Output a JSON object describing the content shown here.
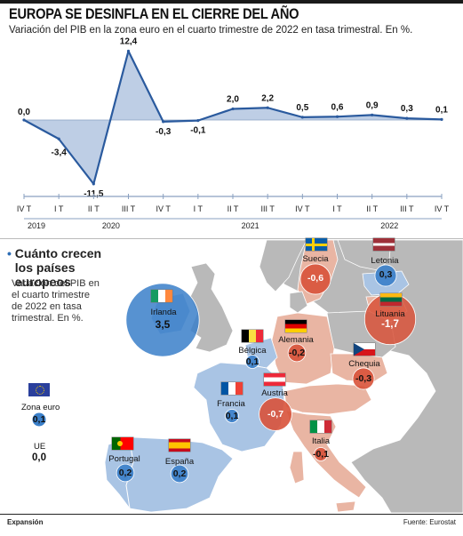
{
  "header": {
    "title": "EUROPA SE DESINFLA EN EL CIERRE DEL AÑO",
    "subtitle": "Variación del PIB en la zona euro en el cuarto trimestre de 2022 en tasa trimestral. En %."
  },
  "chart_data": {
    "type": "area",
    "x": [
      "IV T",
      "I T",
      "II T",
      "III T",
      "IV T",
      "I T",
      "II T",
      "III T",
      "IV T",
      "I T",
      "II T",
      "III T",
      "IV T"
    ],
    "year_labels": [
      "2019",
      "2020",
      "2021",
      "2022"
    ],
    "values": [
      0.0,
      -3.4,
      -11.5,
      12.4,
      -0.3,
      -0.1,
      2.0,
      2.2,
      0.5,
      0.6,
      0.9,
      0.3,
      0.1
    ],
    "value_labels": [
      "0,0",
      "-3,4",
      "-11,5",
      "12,4",
      "-0,3",
      "-0,1",
      "2,0",
      "2,2",
      "0,5",
      "0,6",
      "0,9",
      "0,3",
      "0,1"
    ],
    "colors": {
      "line": "#2a5a9e",
      "fill": "#b3c6e0",
      "axis": "#8aa0c0"
    }
  },
  "map": {
    "section_title": "Cuánto crecen los países europeos",
    "section_bullet": "•",
    "description": "Variación del PIB en el cuarto trimestre de 2022 en tasa trimestral. En %.",
    "colors": {
      "positive": "#3a7fc9",
      "negative": "#d8523a",
      "land_positive": "#a9c4e4",
      "land_negative": "#e9b5a3",
      "land_other": "#b8b8b8",
      "sea": "#ffffff"
    },
    "legend": {
      "zona_euro_label": "Zona euro",
      "zona_euro_value": "0,1",
      "ue_label": "UE",
      "ue_value": "0,0"
    },
    "countries": [
      {
        "name": "Irlanda",
        "value": 3.5,
        "label": "3,5",
        "flag": "irlanda-flag"
      },
      {
        "name": "Suecia",
        "value": -0.6,
        "label": "-0,6",
        "flag": "suecia-flag"
      },
      {
        "name": "Letonia",
        "value": 0.3,
        "label": "0,3",
        "flag": "letonia-flag"
      },
      {
        "name": "Lituania",
        "value": -1.7,
        "label": "-1,7",
        "flag": "lituania-flag"
      },
      {
        "name": "Bélgica",
        "value": 0.1,
        "label": "0,1",
        "flag": "belgica-flag"
      },
      {
        "name": "Alemania",
        "value": -0.2,
        "label": "-0,2",
        "flag": "alemania-flag"
      },
      {
        "name": "Chequia",
        "value": -0.3,
        "label": "-0,3",
        "flag": "chequia-flag"
      },
      {
        "name": "Francia",
        "value": 0.1,
        "label": "0,1",
        "flag": "francia-flag"
      },
      {
        "name": "Austria",
        "value": -0.7,
        "label": "-0,7",
        "flag": "austria-flag"
      },
      {
        "name": "Italia",
        "value": -0.1,
        "label": "-0,1",
        "flag": "italia-flag"
      },
      {
        "name": "Portugal",
        "value": 0.2,
        "label": "0,2",
        "flag": "portugal-flag"
      },
      {
        "name": "España",
        "value": 0.2,
        "label": "0,2",
        "flag": "espana-flag"
      }
    ]
  },
  "footer": {
    "left": "Expansión",
    "right": "Fuente: Eurostat"
  }
}
